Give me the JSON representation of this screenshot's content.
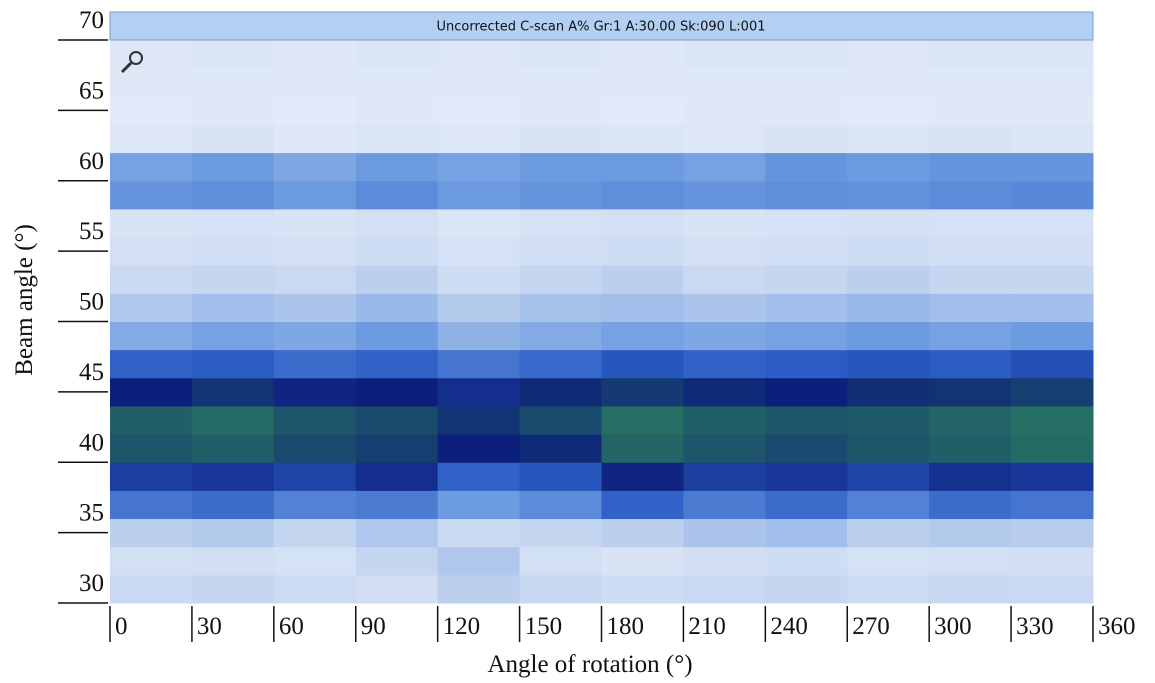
{
  "chart_data": {
    "type": "heatmap",
    "title": "Uncorrected C-scan A% Gr:1 A:30.00 Sk:090 L:001",
    "xlabel": "Angle of rotation (°)",
    "ylabel": "Beam angle (°)",
    "xlim": [
      0,
      360
    ],
    "ylim": [
      30,
      70
    ],
    "xticks": [
      0,
      30,
      60,
      90,
      120,
      150,
      180,
      210,
      240,
      270,
      300,
      330,
      360
    ],
    "yticks": [
      30,
      35,
      40,
      45,
      50,
      55,
      60,
      65,
      70
    ],
    "x_bins": [
      0,
      30,
      60,
      90,
      120,
      150,
      180,
      210,
      240,
      270,
      300,
      330,
      360
    ],
    "y_bins": [
      30,
      32,
      34,
      36,
      38,
      40,
      42,
      44,
      46,
      48,
      50,
      52,
      54,
      56,
      58,
      60,
      62,
      64,
      66,
      68,
      70
    ],
    "zlim": [
      0,
      100
    ],
    "colorscale": [
      "#f4f7fd",
      "#c5d6f0",
      "#6d9be0",
      "#2a5cc4",
      "#0c1f7a",
      "#2f8a5c"
    ],
    "z": [
      [
        18,
        20,
        17,
        15,
        22,
        19,
        16,
        18,
        20,
        17,
        19,
        18
      ],
      [
        14,
        15,
        13,
        20,
        25,
        14,
        12,
        15,
        16,
        13,
        14,
        15
      ],
      [
        22,
        24,
        20,
        25,
        18,
        20,
        22,
        26,
        28,
        22,
        24,
        23
      ],
      [
        52,
        55,
        48,
        50,
        40,
        45,
        58,
        50,
        55,
        48,
        55,
        52
      ],
      [
        70,
        72,
        68,
        75,
        58,
        62,
        78,
        70,
        72,
        68,
        74,
        72
      ],
      [
        90,
        92,
        88,
        86,
        80,
        82,
        93,
        90,
        88,
        90,
        92,
        94
      ],
      [
        92,
        94,
        90,
        88,
        84,
        88,
        95,
        92,
        90,
        91,
        93,
        95
      ],
      [
        80,
        84,
        78,
        80,
        75,
        82,
        85,
        82,
        80,
        83,
        84,
        86
      ],
      [
        58,
        60,
        55,
        58,
        52,
        56,
        62,
        58,
        60,
        62,
        60,
        64
      ],
      [
        35,
        38,
        36,
        40,
        32,
        35,
        38,
        36,
        38,
        40,
        38,
        40
      ],
      [
        25,
        28,
        26,
        30,
        24,
        27,
        28,
        26,
        28,
        30,
        28,
        28
      ],
      [
        18,
        20,
        18,
        22,
        16,
        20,
        22,
        18,
        20,
        22,
        20,
        20
      ],
      [
        14,
        15,
        14,
        16,
        13,
        15,
        16,
        14,
        15,
        16,
        15,
        15
      ],
      [
        12,
        13,
        12,
        14,
        11,
        13,
        14,
        12,
        13,
        14,
        13,
        13
      ],
      [
        42,
        44,
        40,
        45,
        40,
        42,
        44,
        42,
        44,
        43,
        45,
        46
      ],
      [
        38,
        40,
        36,
        40,
        38,
        40,
        40,
        38,
        42,
        40,
        42,
        42
      ],
      [
        10,
        12,
        10,
        11,
        10,
        12,
        11,
        10,
        12,
        11,
        12,
        11
      ],
      [
        8,
        9,
        8,
        9,
        8,
        9,
        8,
        9,
        9,
        8,
        9,
        9
      ],
      [
        9,
        10,
        9,
        10,
        9,
        10,
        9,
        10,
        10,
        9,
        10,
        10
      ],
      [
        10,
        11,
        10,
        11,
        10,
        11,
        10,
        11,
        11,
        10,
        11,
        11
      ]
    ]
  }
}
